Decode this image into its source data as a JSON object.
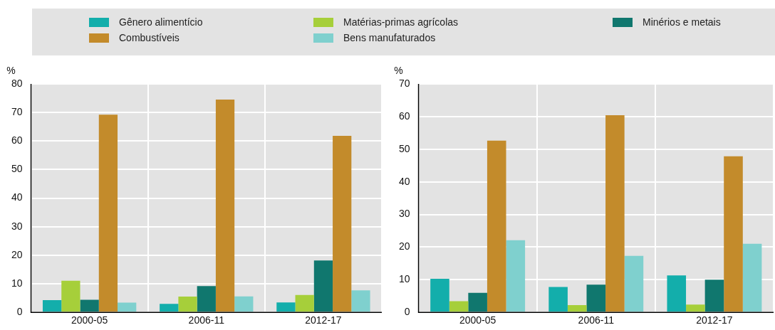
{
  "chart_data": [
    {
      "type": "bar",
      "ylabel": "%",
      "categories": [
        "2000-05",
        "2006-11",
        "2012-17"
      ],
      "ylim": [
        0,
        80
      ],
      "yticks": [
        0,
        10,
        20,
        30,
        40,
        50,
        60,
        70,
        80
      ],
      "grid": true,
      "legend": "top",
      "series": [
        {
          "name": "Gênero alimentício",
          "color": "#13aeab",
          "values": [
            4.3,
            3.0,
            3.5
          ]
        },
        {
          "name": "Matérias-primas agrícolas",
          "color": "#a6cf3a",
          "values": [
            11.1,
            5.5,
            6.1
          ]
        },
        {
          "name": "Minérios e metais",
          "color": "#10776e",
          "values": [
            4.4,
            9.2,
            18.2
          ]
        },
        {
          "name": "Combustíveis",
          "color": "#c38b2b",
          "values": [
            69.2,
            74.5,
            61.8
          ]
        },
        {
          "name": "Bens manufaturados",
          "color": "#7fd0ce",
          "values": [
            3.4,
            5.6,
            7.7
          ]
        }
      ]
    },
    {
      "type": "bar",
      "ylabel": "%",
      "categories": [
        "2000-05",
        "2006-11",
        "2012-17"
      ],
      "ylim": [
        0,
        70
      ],
      "yticks": [
        0,
        10,
        20,
        30,
        40,
        50,
        60,
        70
      ],
      "grid": true,
      "legend": "top",
      "series": [
        {
          "name": "Gênero alimentício",
          "color": "#13aeab",
          "values": [
            10.3,
            7.8,
            11.3
          ]
        },
        {
          "name": "Matérias-primas agrícolas",
          "color": "#a6cf3a",
          "values": [
            3.4,
            2.2,
            2.4
          ]
        },
        {
          "name": "Minérios e metais",
          "color": "#10776e",
          "values": [
            6.0,
            8.5,
            10.0
          ]
        },
        {
          "name": "Combustíveis",
          "color": "#c38b2b",
          "values": [
            52.6,
            60.4,
            47.8
          ]
        },
        {
          "name": "Bens manufaturados",
          "color": "#7fd0ce",
          "values": [
            22.1,
            17.3,
            21.0
          ]
        }
      ]
    }
  ]
}
